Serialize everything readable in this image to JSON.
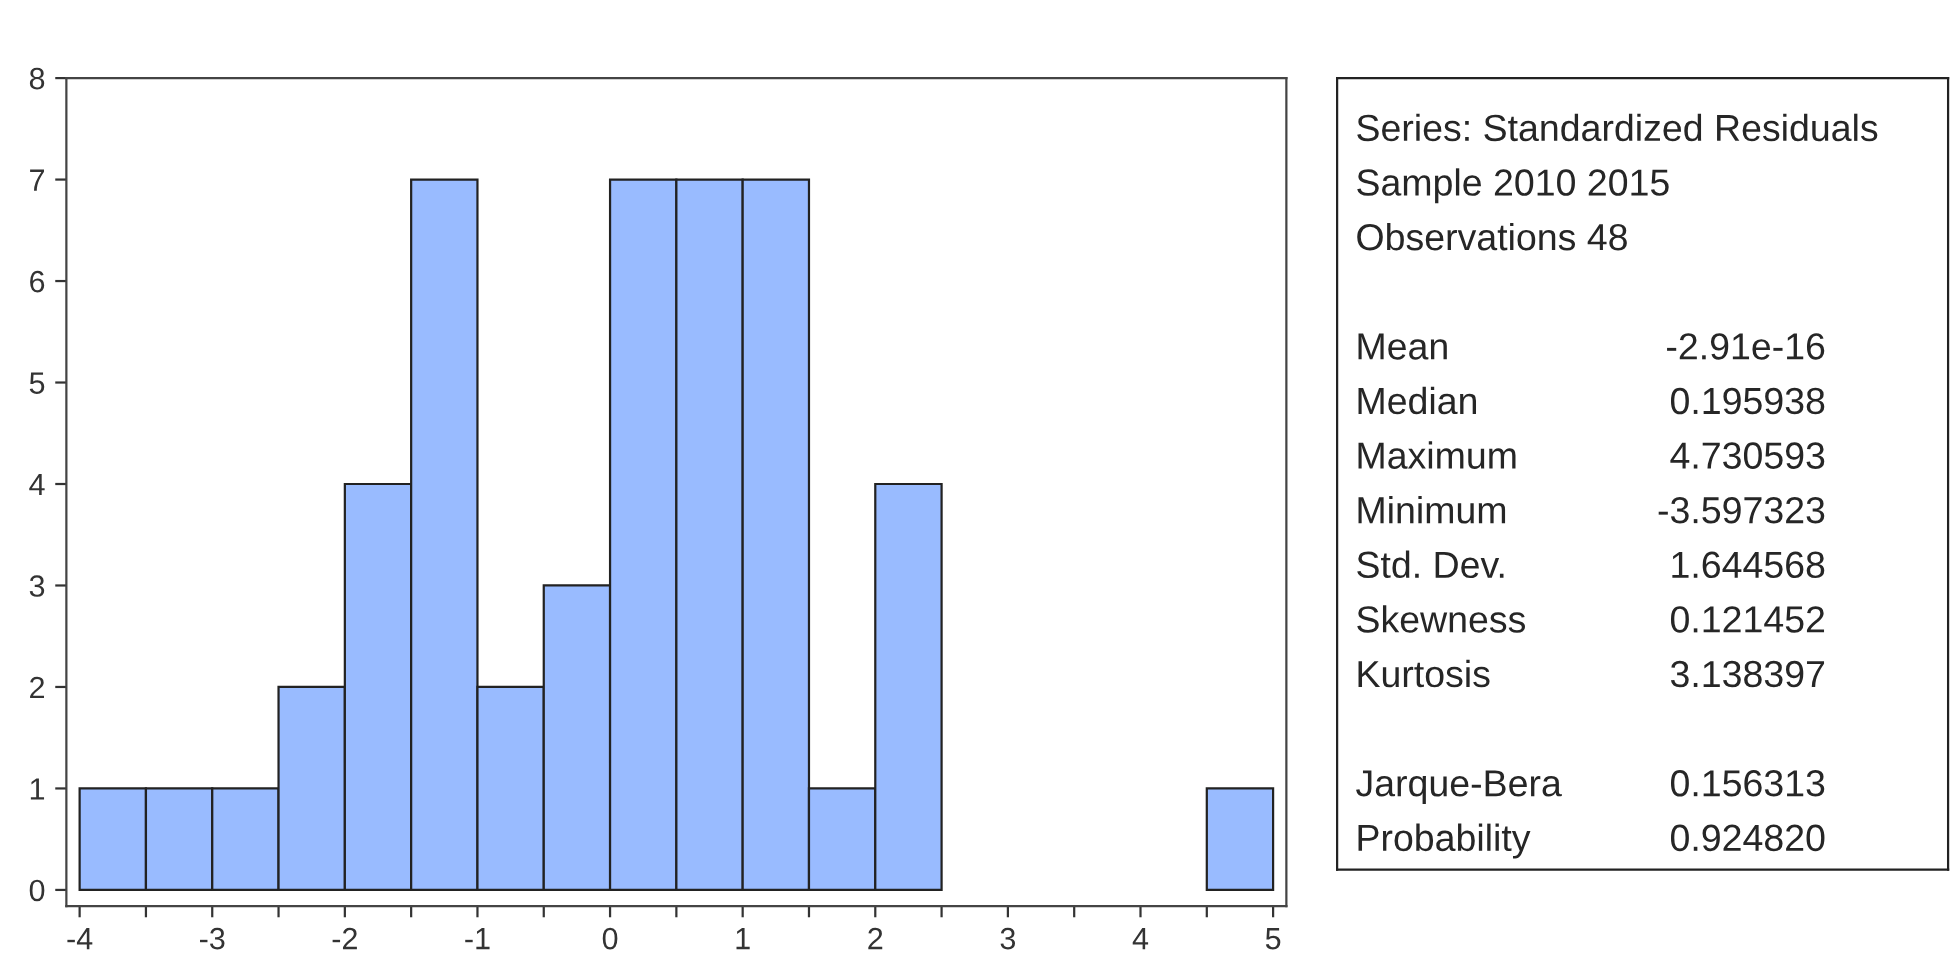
{
  "chart_data": {
    "type": "histogram",
    "bins": [
      -4,
      -3.5,
      -3,
      -2.5,
      -2,
      -1.5,
      -1,
      -0.5,
      0,
      0.5,
      1,
      1.5,
      2,
      2.5,
      3,
      3.5,
      4,
      4.5,
      5
    ],
    "values": [
      1,
      1,
      1,
      2,
      4,
      7,
      2,
      3,
      7,
      7,
      7,
      1,
      4,
      0,
      0,
      0,
      0,
      1
    ],
    "color": "#99bbff",
    "xlim": [
      -4.1,
      5.1
    ],
    "xticks": [
      -4,
      {
        "value": -3.5,
        "label": null
      },
      -3,
      {
        "value": -2.5,
        "label": null
      },
      -2,
      {
        "value": -1.5,
        "label": null
      },
      -1,
      {
        "value": -0.5,
        "label": null
      },
      0,
      {
        "value": 0.5,
        "label": null
      },
      1,
      {
        "value": 1.5,
        "label": null
      },
      2,
      {
        "value": 2.5,
        "label": null
      },
      3,
      {
        "value": 3.5,
        "label": null
      },
      4,
      {
        "value": 4.5,
        "label": null
      },
      5
    ],
    "ylim": [
      -0.16,
      8
    ],
    "yticks": [
      0,
      1,
      2,
      3,
      4,
      5,
      6,
      7,
      8
    ],
    "grid": false,
    "annotations": [
      "Series: Standardized Residuals",
      "Sample 2010 2015",
      "Observations 48",
      "Mean",
      "-2.91e-16",
      "Median",
      "0.195938",
      "Maximum",
      "4.730593",
      "Minimum",
      "-3.597323",
      "Std. Dev.",
      "1.644568",
      "Skewness",
      "0.121452",
      "Kurtosis",
      "3.138397",
      "Jarque-Bera",
      "0.156313",
      "Probability",
      "0.924820"
    ]
  }
}
